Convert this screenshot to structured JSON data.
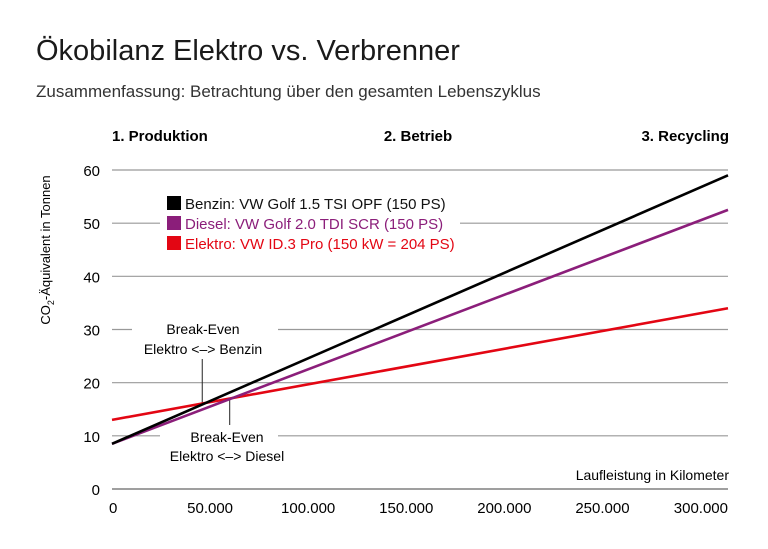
{
  "chart_data": {
    "type": "line",
    "title": "Ökobilanz Elektro vs. Verbrenner",
    "subtitle": "Zusammenfassung: Betrachtung über den gesamten Lebenszyklus",
    "phases": [
      "1. Produktion",
      "2. Betrieb",
      "3. Recycling"
    ],
    "xlabel": "Laufleistung in Kilometer",
    "ylabel_pre": "CO",
    "ylabel_sub": "2",
    "ylabel_post": "-Äquivalent in Tonnen",
    "xlim": [
      0,
      314000
    ],
    "ylim": [
      0,
      60
    ],
    "xticks": [
      0,
      50000,
      100000,
      150000,
      200000,
      250000,
      300000
    ],
    "xtick_labels": [
      "0",
      "50.000",
      "100.000",
      "150.000",
      "200.000",
      "250.000",
      "300.000"
    ],
    "yticks": [
      0,
      10,
      20,
      30,
      40,
      50,
      60
    ],
    "ytick_labels": [
      "0",
      "10",
      "20",
      "30",
      "40",
      "50",
      "60"
    ],
    "grid": "horizontal",
    "legend_position": "top-left",
    "series": [
      {
        "name": "Benzin: VW Golf 1.5 TSI OPF (150 PS)",
        "color": "#000000",
        "x": [
          0,
          314000
        ],
        "y": [
          8.5,
          59
        ]
      },
      {
        "name": "Diesel: VW Golf 2.0 TDI SCR (150 PS)",
        "color": "#8b1e7a",
        "x": [
          0,
          314000
        ],
        "y": [
          8.5,
          52.5
        ]
      },
      {
        "name": "Elektro: VW ID.3 Pro (150 kW = 204 PS)",
        "color": "#e30613",
        "x": [
          0,
          314000
        ],
        "y": [
          13,
          34
        ]
      }
    ],
    "annotations": [
      {
        "line1": "Break-Even",
        "line2": "Elektro <–> Benzin",
        "x": 46000,
        "y": 16
      },
      {
        "line1": "Break-Even",
        "line2": "Elektro <–> Diesel",
        "x": 60000,
        "y": 17
      }
    ]
  }
}
